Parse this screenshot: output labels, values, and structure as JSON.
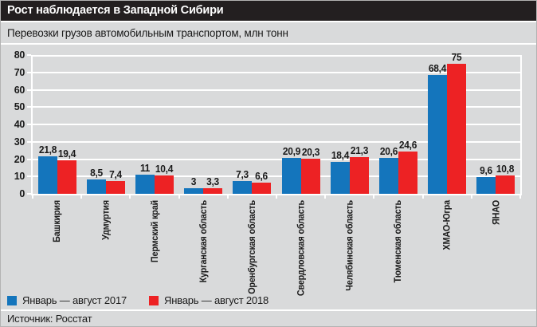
{
  "window": {
    "title": "Рост наблюдается в Западной Сибири"
  },
  "header": {
    "subtitle": "Перевозки грузов автомобильным транспортом, млн тонн"
  },
  "chart_data": {
    "type": "bar",
    "title": "Рост наблюдается в Западной Сибири",
    "subtitle": "Перевозки грузов автомобильным транспортом, млн тонн",
    "ylabel": "млн тонн",
    "categories": [
      "Башкирия",
      "Удмуртия",
      "Пермский край",
      "Курганская область",
      "Оренбургская область",
      "Свердловская область",
      "Челябинская область",
      "Тюменская область",
      "ХМАО-Югра",
      "ЯНАО"
    ],
    "series": [
      {
        "name": "Январь — август 2017",
        "color": "#1475bc",
        "values": [
          21.8,
          8.5,
          11,
          3,
          7.3,
          20.9,
          18.4,
          20.6,
          68.4,
          9.6
        ],
        "labels": [
          "21,8",
          "8,5",
          "11",
          "3",
          "7,3",
          "20,9",
          "18,4",
          "20,6",
          "68,4",
          "9,6"
        ]
      },
      {
        "name": "Январь — август 2018",
        "color": "#ed2224",
        "values": [
          19.4,
          7.4,
          10.4,
          3.3,
          6.6,
          20.3,
          21.3,
          24.6,
          75,
          10.8
        ],
        "labels": [
          "19,4",
          "7,4",
          "10,4",
          "3,3",
          "6,6",
          "20,3",
          "21,3",
          "24,6",
          "75",
          "10,8"
        ]
      }
    ],
    "ylim": [
      0,
      80
    ],
    "ytick_step": 10,
    "yticks": [
      0,
      10,
      20,
      30,
      40,
      50,
      60,
      70,
      80
    ],
    "grid": true,
    "legend_position": "bottom"
  },
  "footer": {
    "source": "Источник: Росстат"
  },
  "colors": {
    "background": "#d9dadb",
    "title_bar": "#231f20",
    "title_text": "#ffffff",
    "grid": "#ffffff",
    "text": "#1a1a1a",
    "series_2017": "#1475bc",
    "series_2018": "#ed2224"
  }
}
